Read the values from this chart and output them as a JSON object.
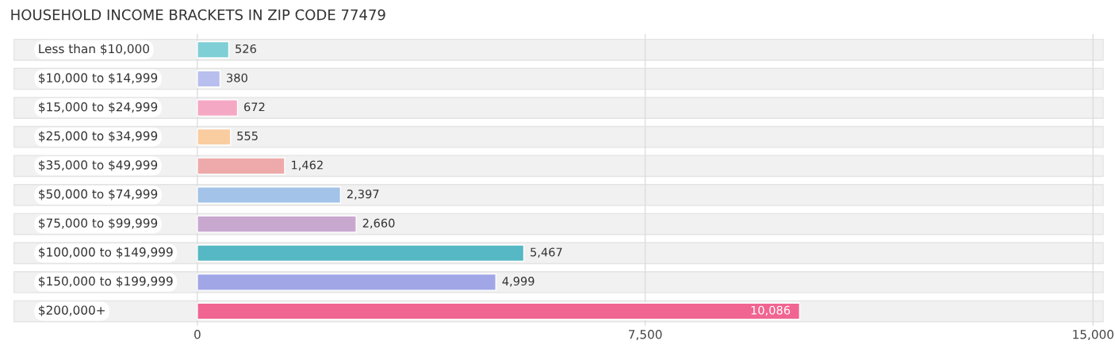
{
  "chart_data": {
    "type": "bar",
    "title": "HOUSEHOLD INCOME BRACKETS IN ZIP CODE 77479",
    "orientation": "horizontal",
    "categories": [
      "Less than $10,000",
      "$10,000 to $14,999",
      "$15,000 to $24,999",
      "$25,000 to $34,999",
      "$35,000 to $49,999",
      "$50,000 to $74,999",
      "$75,000 to $99,999",
      "$100,000 to $149,999",
      "$150,000 to $199,999",
      "$200,000+"
    ],
    "values": [
      526,
      380,
      672,
      555,
      1462,
      2397,
      2660,
      5467,
      4999,
      10086
    ],
    "value_labels": [
      "526",
      "380",
      "672",
      "555",
      "1,462",
      "2,397",
      "2,660",
      "5,467",
      "4,999",
      "10,086"
    ],
    "colors": [
      "#7fcfd6",
      "#b8bfee",
      "#f5a8c4",
      "#f9cda0",
      "#eeaaaa",
      "#a3c3e8",
      "#c9a8d0",
      "#55b8c4",
      "#a0a6e6",
      "#f06592"
    ],
    "xlim": [
      -3100,
      15200
    ],
    "xticks": [
      0,
      {
        "value": 7500,
        "label": "7,500"
      },
      {
        "value": 15000,
        "label": "15,000"
      }
    ],
    "grid": "x"
  }
}
